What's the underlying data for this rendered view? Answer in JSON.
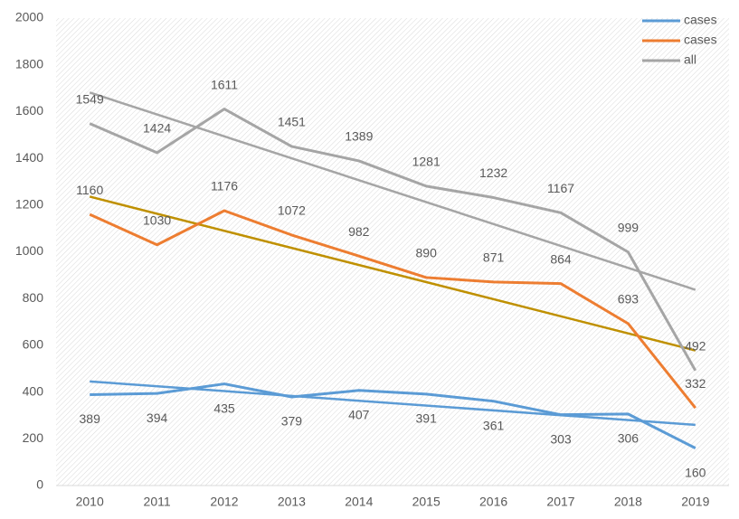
{
  "chart_data": {
    "type": "line",
    "categories": [
      "2010",
      "2011",
      "2012",
      "2013",
      "2014",
      "2015",
      "2016",
      "2017",
      "2018",
      "2019"
    ],
    "series": [
      {
        "name": "cases",
        "color": "#5b9bd5",
        "trendline_color": "#5b9bd5",
        "label_position": "below",
        "values": [
          389,
          394,
          435,
          379,
          407,
          391,
          361,
          303,
          306,
          160
        ]
      },
      {
        "name": "cases",
        "color": "#ed7d31",
        "trendline_color": "#bf9000",
        "label_position": "above",
        "values": [
          1160,
          1030,
          1176,
          1072,
          982,
          890,
          871,
          864,
          693,
          332
        ]
      },
      {
        "name": "all",
        "color": "#a5a5a5",
        "trendline_color": "#a5a5a5",
        "label_position": "above",
        "values": [
          1549,
          1424,
          1611,
          1451,
          1389,
          1281,
          1232,
          1167,
          999,
          492
        ]
      }
    ],
    "trendline": true,
    "ylim": [
      0,
      2000
    ],
    "yticks": [
      0,
      200,
      400,
      600,
      800,
      1000,
      1200,
      1400,
      1600,
      1800,
      2000
    ],
    "grid": false,
    "legend": "top-right"
  }
}
